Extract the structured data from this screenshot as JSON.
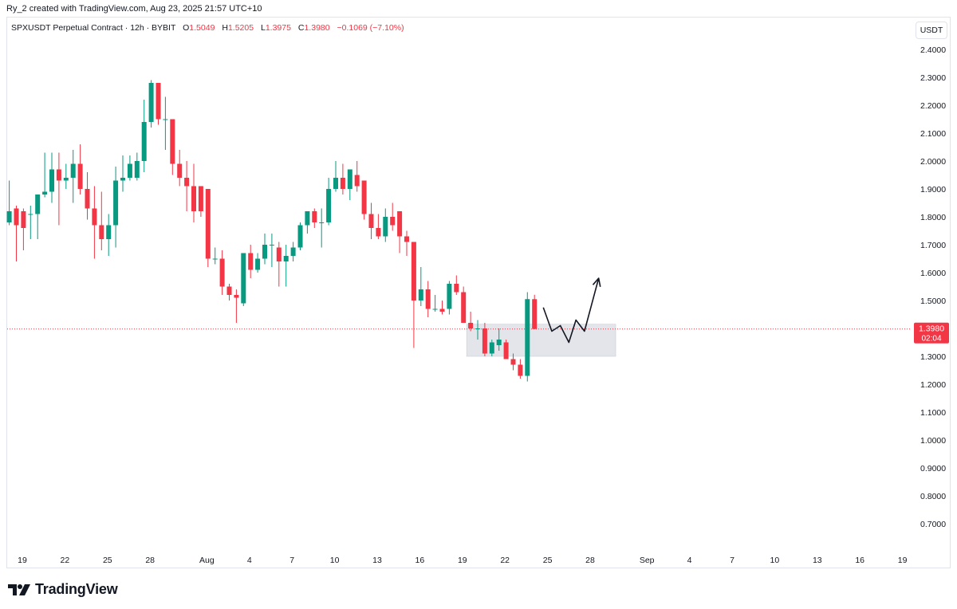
{
  "header": {
    "credit": "Ry_2 created with TradingView.com, Aug 23, 2025 21:57 UTC+10"
  },
  "legend": {
    "symbol": "SPXUSDT Perpetual Contract · 12h · BYBIT",
    "o_label": "O",
    "o_value": "1.5049",
    "h_label": "H",
    "h_value": "1.5205",
    "l_label": "L",
    "l_value": "1.3975",
    "c_label": "C",
    "c_value": "1.3980",
    "change": "−0.1069 (−7.10%)"
  },
  "currency_button": "USDT",
  "price_tag": {
    "price": "1.3980",
    "countdown": "02:04"
  },
  "footer": {
    "brand": "TradingView"
  },
  "colors": {
    "up": "#089981",
    "down": "#f23645",
    "zone": "#d1d4dc",
    "grid": "#e0e3eb"
  },
  "chart_data": {
    "type": "candlestick",
    "interval": "12h",
    "ylim": [
      0.62,
      2.45
    ],
    "y_ticks": [
      "2.4000",
      "2.3000",
      "2.2000",
      "2.1000",
      "2.0000",
      "1.9000",
      "1.8000",
      "1.7000",
      "1.6000",
      "1.5000",
      "1.4000",
      "1.3000",
      "1.2000",
      "1.1000",
      "1.0000",
      "0.9000",
      "0.8000",
      "0.7000"
    ],
    "x_ticks": [
      {
        "label": "19",
        "day": 19.0
      },
      {
        "label": "22",
        "day": 22.0
      },
      {
        "label": "25",
        "day": 25.0
      },
      {
        "label": "28",
        "day": 28.0
      },
      {
        "label": "Aug",
        "day": 32.0
      },
      {
        "label": "4",
        "day": 35.0
      },
      {
        "label": "7",
        "day": 38.0
      },
      {
        "label": "10",
        "day": 41.0
      },
      {
        "label": "13",
        "day": 44.0
      },
      {
        "label": "16",
        "day": 47.0
      },
      {
        "label": "19",
        "day": 50.0
      },
      {
        "label": "22",
        "day": 53.0
      },
      {
        "label": "25",
        "day": 56.0
      },
      {
        "label": "28",
        "day": 59.0
      },
      {
        "label": "Sep",
        "day": 63.0
      },
      {
        "label": "4",
        "day": 66.0
      },
      {
        "label": "7",
        "day": 69.0
      },
      {
        "label": "10",
        "day": 72.0
      },
      {
        "label": "13",
        "day": 75.0
      },
      {
        "label": "16",
        "day": 78.0
      },
      {
        "label": "19",
        "day": 81.0
      }
    ],
    "candles": [
      {
        "o": 1.78,
        "h": 1.93,
        "l": 1.77,
        "c": 1.82
      },
      {
        "o": 1.83,
        "h": 1.84,
        "l": 1.64,
        "c": 1.77
      },
      {
        "o": 1.82,
        "h": 1.83,
        "l": 1.68,
        "c": 1.76
      },
      {
        "o": 1.81,
        "h": 1.84,
        "l": 1.72,
        "c": 1.81
      },
      {
        "o": 1.81,
        "h": 1.88,
        "l": 1.72,
        "c": 1.88
      },
      {
        "o": 1.88,
        "h": 2.03,
        "l": 1.87,
        "c": 1.89
      },
      {
        "o": 1.89,
        "h": 2.03,
        "l": 1.85,
        "c": 1.97
      },
      {
        "o": 1.97,
        "h": 2.03,
        "l": 1.77,
        "c": 1.93
      },
      {
        "o": 1.93,
        "h": 1.99,
        "l": 1.9,
        "c": 1.94
      },
      {
        "o": 1.94,
        "h": 2.04,
        "l": 1.85,
        "c": 1.99
      },
      {
        "o": 1.99,
        "h": 2.06,
        "l": 1.88,
        "c": 1.9
      },
      {
        "o": 1.9,
        "h": 1.96,
        "l": 1.79,
        "c": 1.83
      },
      {
        "o": 1.83,
        "h": 1.91,
        "l": 1.65,
        "c": 1.77
      },
      {
        "o": 1.77,
        "h": 1.89,
        "l": 1.68,
        "c": 1.72
      },
      {
        "o": 1.72,
        "h": 1.81,
        "l": 1.66,
        "c": 1.77
      },
      {
        "o": 1.77,
        "h": 1.98,
        "l": 1.69,
        "c": 1.93
      },
      {
        "o": 1.93,
        "h": 2.02,
        "l": 1.89,
        "c": 1.94
      },
      {
        "o": 1.94,
        "h": 2.02,
        "l": 1.93,
        "c": 1.99
      },
      {
        "o": 1.94,
        "h": 2.03,
        "l": 1.93,
        "c": 2.0
      },
      {
        "o": 2.0,
        "h": 2.22,
        "l": 1.96,
        "c": 2.14
      },
      {
        "o": 2.14,
        "h": 2.29,
        "l": 2.12,
        "c": 2.28
      },
      {
        "o": 2.28,
        "h": 2.28,
        "l": 2.13,
        "c": 2.15
      },
      {
        "o": 2.15,
        "h": 2.23,
        "l": 2.04,
        "c": 2.15
      },
      {
        "o": 2.15,
        "h": 2.15,
        "l": 1.95,
        "c": 1.99
      },
      {
        "o": 1.99,
        "h": 2.04,
        "l": 1.91,
        "c": 1.94
      },
      {
        "o": 1.94,
        "h": 2.0,
        "l": 1.82,
        "c": 1.91
      },
      {
        "o": 1.91,
        "h": 1.99,
        "l": 1.78,
        "c": 1.82
      },
      {
        "o": 1.91,
        "h": 1.91,
        "l": 1.8,
        "c": 1.82
      },
      {
        "o": 1.9,
        "h": 1.9,
        "l": 1.62,
        "c": 1.65
      },
      {
        "o": 1.65,
        "h": 1.69,
        "l": 1.63,
        "c": 1.65
      },
      {
        "o": 1.65,
        "h": 1.68,
        "l": 1.52,
        "c": 1.55
      },
      {
        "o": 1.55,
        "h": 1.56,
        "l": 1.5,
        "c": 1.52
      },
      {
        "o": 1.52,
        "h": 1.54,
        "l": 1.42,
        "c": 1.51
      },
      {
        "o": 1.49,
        "h": 1.67,
        "l": 1.48,
        "c": 1.67
      },
      {
        "o": 1.67,
        "h": 1.7,
        "l": 1.58,
        "c": 1.61
      },
      {
        "o": 1.61,
        "h": 1.67,
        "l": 1.6,
        "c": 1.65
      },
      {
        "o": 1.65,
        "h": 1.74,
        "l": 1.63,
        "c": 1.7
      },
      {
        "o": 1.7,
        "h": 1.74,
        "l": 1.62,
        "c": 1.7
      },
      {
        "o": 1.69,
        "h": 1.71,
        "l": 1.55,
        "c": 1.64
      },
      {
        "o": 1.64,
        "h": 1.7,
        "l": 1.55,
        "c": 1.66
      },
      {
        "o": 1.66,
        "h": 1.71,
        "l": 1.64,
        "c": 1.69
      },
      {
        "o": 1.69,
        "h": 1.78,
        "l": 1.68,
        "c": 1.77
      },
      {
        "o": 1.77,
        "h": 1.82,
        "l": 1.74,
        "c": 1.82
      },
      {
        "o": 1.82,
        "h": 1.83,
        "l": 1.76,
        "c": 1.78
      },
      {
        "o": 1.78,
        "h": 1.83,
        "l": 1.69,
        "c": 1.78
      },
      {
        "o": 1.78,
        "h": 1.94,
        "l": 1.77,
        "c": 1.9
      },
      {
        "o": 1.9,
        "h": 2.0,
        "l": 1.89,
        "c": 1.94
      },
      {
        "o": 1.94,
        "h": 1.99,
        "l": 1.88,
        "c": 1.9
      },
      {
        "o": 1.9,
        "h": 1.97,
        "l": 1.86,
        "c": 1.97
      },
      {
        "o": 1.95,
        "h": 2.0,
        "l": 1.89,
        "c": 1.91
      },
      {
        "o": 1.93,
        "h": 1.93,
        "l": 1.79,
        "c": 1.81
      },
      {
        "o": 1.81,
        "h": 1.85,
        "l": 1.72,
        "c": 1.76
      },
      {
        "o": 1.76,
        "h": 1.81,
        "l": 1.72,
        "c": 1.73
      },
      {
        "o": 1.73,
        "h": 1.83,
        "l": 1.71,
        "c": 1.8
      },
      {
        "o": 1.8,
        "h": 1.85,
        "l": 1.75,
        "c": 1.77
      },
      {
        "o": 1.82,
        "h": 1.82,
        "l": 1.67,
        "c": 1.73
      },
      {
        "o": 1.73,
        "h": 1.75,
        "l": 1.66,
        "c": 1.71
      },
      {
        "o": 1.71,
        "h": 1.71,
        "l": 1.33,
        "c": 1.5
      },
      {
        "o": 1.5,
        "h": 1.62,
        "l": 1.48,
        "c": 1.54
      },
      {
        "o": 1.54,
        "h": 1.57,
        "l": 1.44,
        "c": 1.47
      },
      {
        "o": 1.47,
        "h": 1.52,
        "l": 1.46,
        "c": 1.47
      },
      {
        "o": 1.47,
        "h": 1.5,
        "l": 1.45,
        "c": 1.46
      },
      {
        "o": 1.47,
        "h": 1.57,
        "l": 1.45,
        "c": 1.56
      },
      {
        "o": 1.56,
        "h": 1.59,
        "l": 1.52,
        "c": 1.53
      },
      {
        "o": 1.53,
        "h": 1.55,
        "l": 1.43,
        "c": 1.42
      },
      {
        "o": 1.42,
        "h": 1.46,
        "l": 1.39,
        "c": 1.4
      },
      {
        "o": 1.4,
        "h": 1.43,
        "l": 1.36,
        "c": 1.4
      },
      {
        "o": 1.4,
        "h": 1.42,
        "l": 1.3,
        "c": 1.31
      },
      {
        "o": 1.31,
        "h": 1.36,
        "l": 1.3,
        "c": 1.35
      },
      {
        "o": 1.34,
        "h": 1.4,
        "l": 1.32,
        "c": 1.36
      },
      {
        "o": 1.35,
        "h": 1.36,
        "l": 1.29,
        "c": 1.29
      },
      {
        "o": 1.29,
        "h": 1.31,
        "l": 1.25,
        "c": 1.27
      },
      {
        "o": 1.27,
        "h": 1.29,
        "l": 1.22,
        "c": 1.23
      },
      {
        "o": 1.23,
        "h": 1.53,
        "l": 1.21,
        "c": 1.505
      },
      {
        "o": 1.5049,
        "h": 1.5205,
        "l": 1.3975,
        "c": 1.398
      }
    ],
    "current_price": 1.398,
    "zone": {
      "from_day": 50.3,
      "to_day": 60.8,
      "low": 1.3,
      "high": 1.415
    },
    "projection": [
      {
        "day": 55.7,
        "price": 1.475
      },
      {
        "day": 56.3,
        "price": 1.39
      },
      {
        "day": 56.9,
        "price": 1.41
      },
      {
        "day": 57.5,
        "price": 1.35
      },
      {
        "day": 58.0,
        "price": 1.43
      },
      {
        "day": 58.6,
        "price": 1.39
      },
      {
        "day": 59.6,
        "price": 1.58
      }
    ]
  }
}
